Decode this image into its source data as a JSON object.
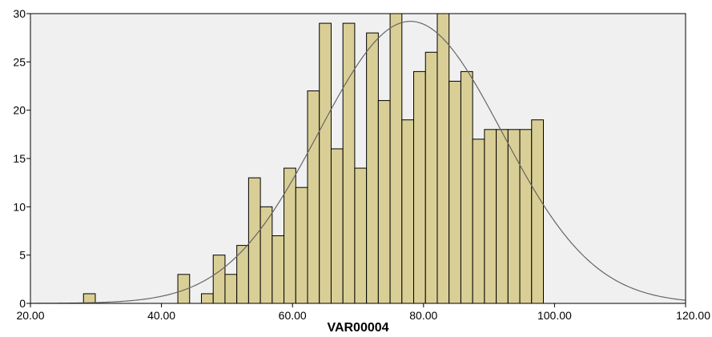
{
  "chart_data": {
    "type": "bar",
    "subtype": "histogram-with-normal-curve",
    "title": "",
    "xlabel": "VAR00004",
    "ylabel": "",
    "xlim": [
      20,
      120
    ],
    "ylim": [
      0,
      30
    ],
    "x_ticks": [
      "20.00",
      "40.00",
      "60.00",
      "80.00",
      "100.00",
      "120.00"
    ],
    "y_ticks": [
      "0",
      "5",
      "10",
      "15",
      "20",
      "25",
      "30"
    ],
    "bin_width": 1.8,
    "bins": [
      {
        "x": 29.0,
        "count": 1
      },
      {
        "x": 43.4,
        "count": 3
      },
      {
        "x": 47.0,
        "count": 1
      },
      {
        "x": 48.8,
        "count": 5
      },
      {
        "x": 50.6,
        "count": 3
      },
      {
        "x": 52.4,
        "count": 6
      },
      {
        "x": 54.2,
        "count": 13
      },
      {
        "x": 56.0,
        "count": 10
      },
      {
        "x": 57.8,
        "count": 7
      },
      {
        "x": 59.6,
        "count": 14
      },
      {
        "x": 61.4,
        "count": 12
      },
      {
        "x": 63.2,
        "count": 22
      },
      {
        "x": 65.0,
        "count": 29
      },
      {
        "x": 66.8,
        "count": 16
      },
      {
        "x": 68.6,
        "count": 29
      },
      {
        "x": 70.4,
        "count": 14
      },
      {
        "x": 72.2,
        "count": 28
      },
      {
        "x": 74.0,
        "count": 21
      },
      {
        "x": 75.8,
        "count": 31
      },
      {
        "x": 77.6,
        "count": 19
      },
      {
        "x": 79.4,
        "count": 24
      },
      {
        "x": 81.2,
        "count": 26
      },
      {
        "x": 83.0,
        "count": 31
      },
      {
        "x": 84.8,
        "count": 23
      },
      {
        "x": 86.6,
        "count": 24
      },
      {
        "x": 88.4,
        "count": 17
      },
      {
        "x": 90.2,
        "count": 18
      },
      {
        "x": 92.0,
        "count": 18
      },
      {
        "x": 93.8,
        "count": 18
      },
      {
        "x": 95.6,
        "count": 18
      },
      {
        "x": 97.4,
        "count": 19
      }
    ],
    "normal_curve": {
      "mean": 78.0,
      "sd": 14.0,
      "peak": 29.2
    },
    "colors": {
      "plot_background": "#f0f0f0",
      "bar_fill": "#d9cf96",
      "bar_stroke": "#000000",
      "curve": "#666666"
    },
    "grid": false
  }
}
